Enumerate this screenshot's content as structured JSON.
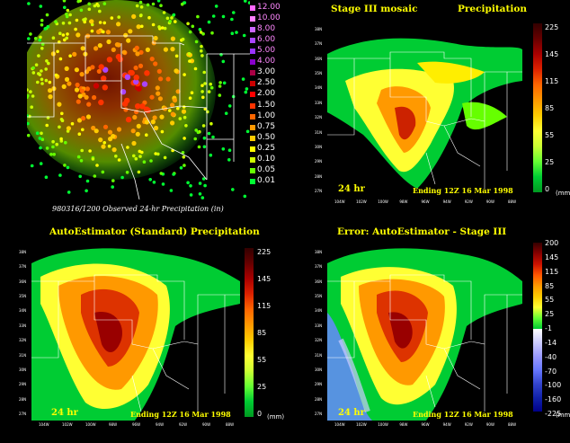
{
  "panels": {
    "observed": {
      "caption": "980316/1200 Observed 24-hr Precipitation (in)",
      "scale": [
        "12.00",
        "10.00",
        "8.00",
        "6.00",
        "5.00",
        "4.00",
        "3.00",
        "2.50",
        "2.00",
        "1.50",
        "1.00",
        "0.75",
        "0.50",
        "0.25",
        "0.10",
        "0.05",
        "0.01"
      ],
      "scale_colors": [
        "#ff66ff",
        "#ff80ff",
        "#cc66ff",
        "#aa44ff",
        "#9933ff",
        "#8800cc",
        "#aa0044",
        "#cc0000",
        "#ff0000",
        "#ff3300",
        "#ff6600",
        "#ff9900",
        "#ffcc00",
        "#ffff00",
        "#ccff00",
        "#66ff00",
        "#00ff33"
      ]
    },
    "stage3": {
      "title_left": "Stage III mosaic",
      "title_right": "Precipitation",
      "duration": "24 hr",
      "ending": "Ending 12Z 16 Mar 1998",
      "scale": [
        "225",
        "145",
        "115",
        "85",
        "55",
        "25",
        "0"
      ],
      "units": "(mm)"
    },
    "auto": {
      "title": "AutoEstimator (Standard) Precipitation",
      "duration": "24 hr",
      "ending": "Ending 12Z 16 Mar 1998",
      "scale": [
        "225",
        "145",
        "115",
        "85",
        "55",
        "25",
        "0"
      ],
      "units": "(mm)"
    },
    "error": {
      "title": "Error: AutoEstimator - Stage III",
      "duration": "24 hr",
      "ending": "Ending 12Z 16 Mar 1998",
      "scale": [
        "200",
        "145",
        "115",
        "85",
        "55",
        "25",
        "-1",
        "-14",
        "-40",
        "-70",
        "-100",
        "-160",
        "-225"
      ],
      "units": "(mm)"
    }
  },
  "lat_labels": [
    "38N",
    "37N",
    "36N",
    "35N",
    "34N",
    "33N",
    "32N",
    "31N",
    "30N",
    "29N",
    "28N",
    "27N"
  ],
  "lon_labels": [
    "104W",
    "102W",
    "100W",
    "98W",
    "96W",
    "94W",
    "92W",
    "90W",
    "88W"
  ],
  "colors": {
    "text_yellow": "#ffff00",
    "background": "#000000"
  }
}
